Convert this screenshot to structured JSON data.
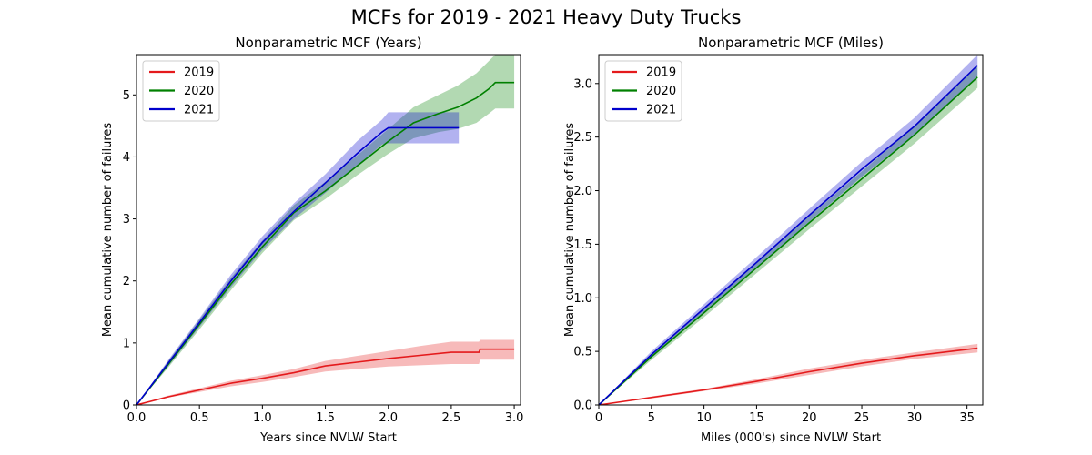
{
  "figure": {
    "title": "MCFs for 2019 - 2021 Heavy Duty Trucks"
  },
  "chart_data": [
    {
      "type": "line",
      "title": "Nonparametric MCF (Years)",
      "xlabel": "Years since NVLW Start",
      "ylabel": "Mean cumulative number of failures",
      "xlim": [
        0,
        3.05
      ],
      "ylim": [
        0,
        5.65
      ],
      "xticks": [
        "0.0",
        "0.5",
        "1.0",
        "1.5",
        "2.0",
        "2.5",
        "3.0"
      ],
      "yticks": [
        "0",
        "1",
        "2",
        "3",
        "4",
        "5"
      ],
      "grid": false,
      "legend_position": "top-left",
      "series": [
        {
          "name": "2019",
          "color": "#e41a1c",
          "x": [
            0,
            0.25,
            0.5,
            0.75,
            1.0,
            1.25,
            1.5,
            1.75,
            2.0,
            2.25,
            2.5,
            2.72,
            2.73,
            3.0
          ],
          "y": [
            0,
            0.13,
            0.24,
            0.35,
            0.43,
            0.52,
            0.63,
            0.69,
            0.75,
            0.8,
            0.85,
            0.85,
            0.9,
            0.9
          ],
          "lower": [
            0,
            0.12,
            0.21,
            0.3,
            0.37,
            0.45,
            0.54,
            0.58,
            0.62,
            0.64,
            0.66,
            0.66,
            0.73,
            0.73
          ],
          "upper": [
            0,
            0.15,
            0.27,
            0.39,
            0.48,
            0.58,
            0.71,
            0.79,
            0.87,
            0.95,
            1.02,
            1.02,
            1.05,
            1.05
          ]
        },
        {
          "name": "2020",
          "color": "#008000",
          "x": [
            0,
            0.25,
            0.5,
            0.75,
            1.0,
            1.25,
            1.5,
            1.75,
            2.0,
            2.2,
            2.4,
            2.55,
            2.7,
            2.8,
            2.85,
            3.0
          ],
          "y": [
            0,
            0.65,
            1.3,
            1.95,
            2.55,
            3.1,
            3.45,
            3.85,
            4.25,
            4.55,
            4.7,
            4.8,
            4.95,
            5.1,
            5.2,
            5.2
          ],
          "lower": [
            0,
            0.6,
            1.22,
            1.85,
            2.45,
            2.98,
            3.32,
            3.7,
            4.05,
            4.3,
            4.4,
            4.45,
            4.55,
            4.7,
            4.78,
            4.78
          ],
          "upper": [
            0,
            0.7,
            1.38,
            2.05,
            2.65,
            3.22,
            3.6,
            4.02,
            4.45,
            4.8,
            5.0,
            5.15,
            5.35,
            5.55,
            5.65,
            5.65
          ]
        },
        {
          "name": "2021",
          "color": "#0000cc",
          "x": [
            0,
            0.25,
            0.5,
            0.75,
            1.0,
            1.25,
            1.5,
            1.75,
            1.95,
            2.0,
            2.56
          ],
          "y": [
            0,
            0.67,
            1.33,
            2.0,
            2.62,
            3.12,
            3.58,
            4.05,
            4.4,
            4.47,
            4.47
          ],
          "lower": [
            0,
            0.62,
            1.26,
            1.9,
            2.5,
            3.0,
            3.42,
            3.85,
            4.2,
            4.22,
            4.22
          ],
          "upper": [
            0,
            0.72,
            1.4,
            2.1,
            2.72,
            3.25,
            3.72,
            4.25,
            4.6,
            4.72,
            4.72
          ]
        }
      ]
    },
    {
      "type": "line",
      "title": "Nonparametric MCF (Miles)",
      "xlabel": "Miles (000's) since NVLW Start",
      "ylabel": "Mean cumulative number of failures",
      "xlim": [
        0,
        36.5
      ],
      "ylim": [
        0,
        3.27
      ],
      "xticks": [
        "0",
        "5",
        "10",
        "15",
        "20",
        "25",
        "30",
        "35"
      ],
      "yticks": [
        "0.0",
        "0.5",
        "1.0",
        "1.5",
        "2.0",
        "2.5",
        "3.0"
      ],
      "grid": false,
      "legend_position": "top-left",
      "series": [
        {
          "name": "2019",
          "color": "#e41a1c",
          "x": [
            0,
            5,
            10,
            15,
            20,
            25,
            30,
            36
          ],
          "y": [
            0,
            0.07,
            0.14,
            0.22,
            0.31,
            0.39,
            0.46,
            0.53
          ],
          "lower": [
            0,
            0.06,
            0.13,
            0.2,
            0.28,
            0.36,
            0.43,
            0.49
          ],
          "upper": [
            0,
            0.08,
            0.15,
            0.24,
            0.34,
            0.42,
            0.49,
            0.57
          ]
        },
        {
          "name": "2020",
          "color": "#008000",
          "x": [
            0,
            5,
            10,
            15,
            20,
            25,
            30,
            36
          ],
          "y": [
            0,
            0.45,
            0.86,
            1.28,
            1.7,
            2.11,
            2.52,
            3.06
          ],
          "lower": [
            0,
            0.42,
            0.82,
            1.23,
            1.64,
            2.04,
            2.44,
            2.96
          ],
          "upper": [
            0,
            0.48,
            0.9,
            1.33,
            1.76,
            2.18,
            2.6,
            3.16
          ]
        },
        {
          "name": "2021",
          "color": "#0000cc",
          "x": [
            0,
            5,
            10,
            15,
            20,
            25,
            30,
            36
          ],
          "y": [
            0,
            0.47,
            0.9,
            1.33,
            1.77,
            2.2,
            2.6,
            3.17
          ],
          "lower": [
            0,
            0.44,
            0.86,
            1.28,
            1.71,
            2.13,
            2.52,
            3.07
          ],
          "upper": [
            0,
            0.5,
            0.94,
            1.38,
            1.83,
            2.27,
            2.68,
            3.27
          ]
        }
      ]
    }
  ]
}
